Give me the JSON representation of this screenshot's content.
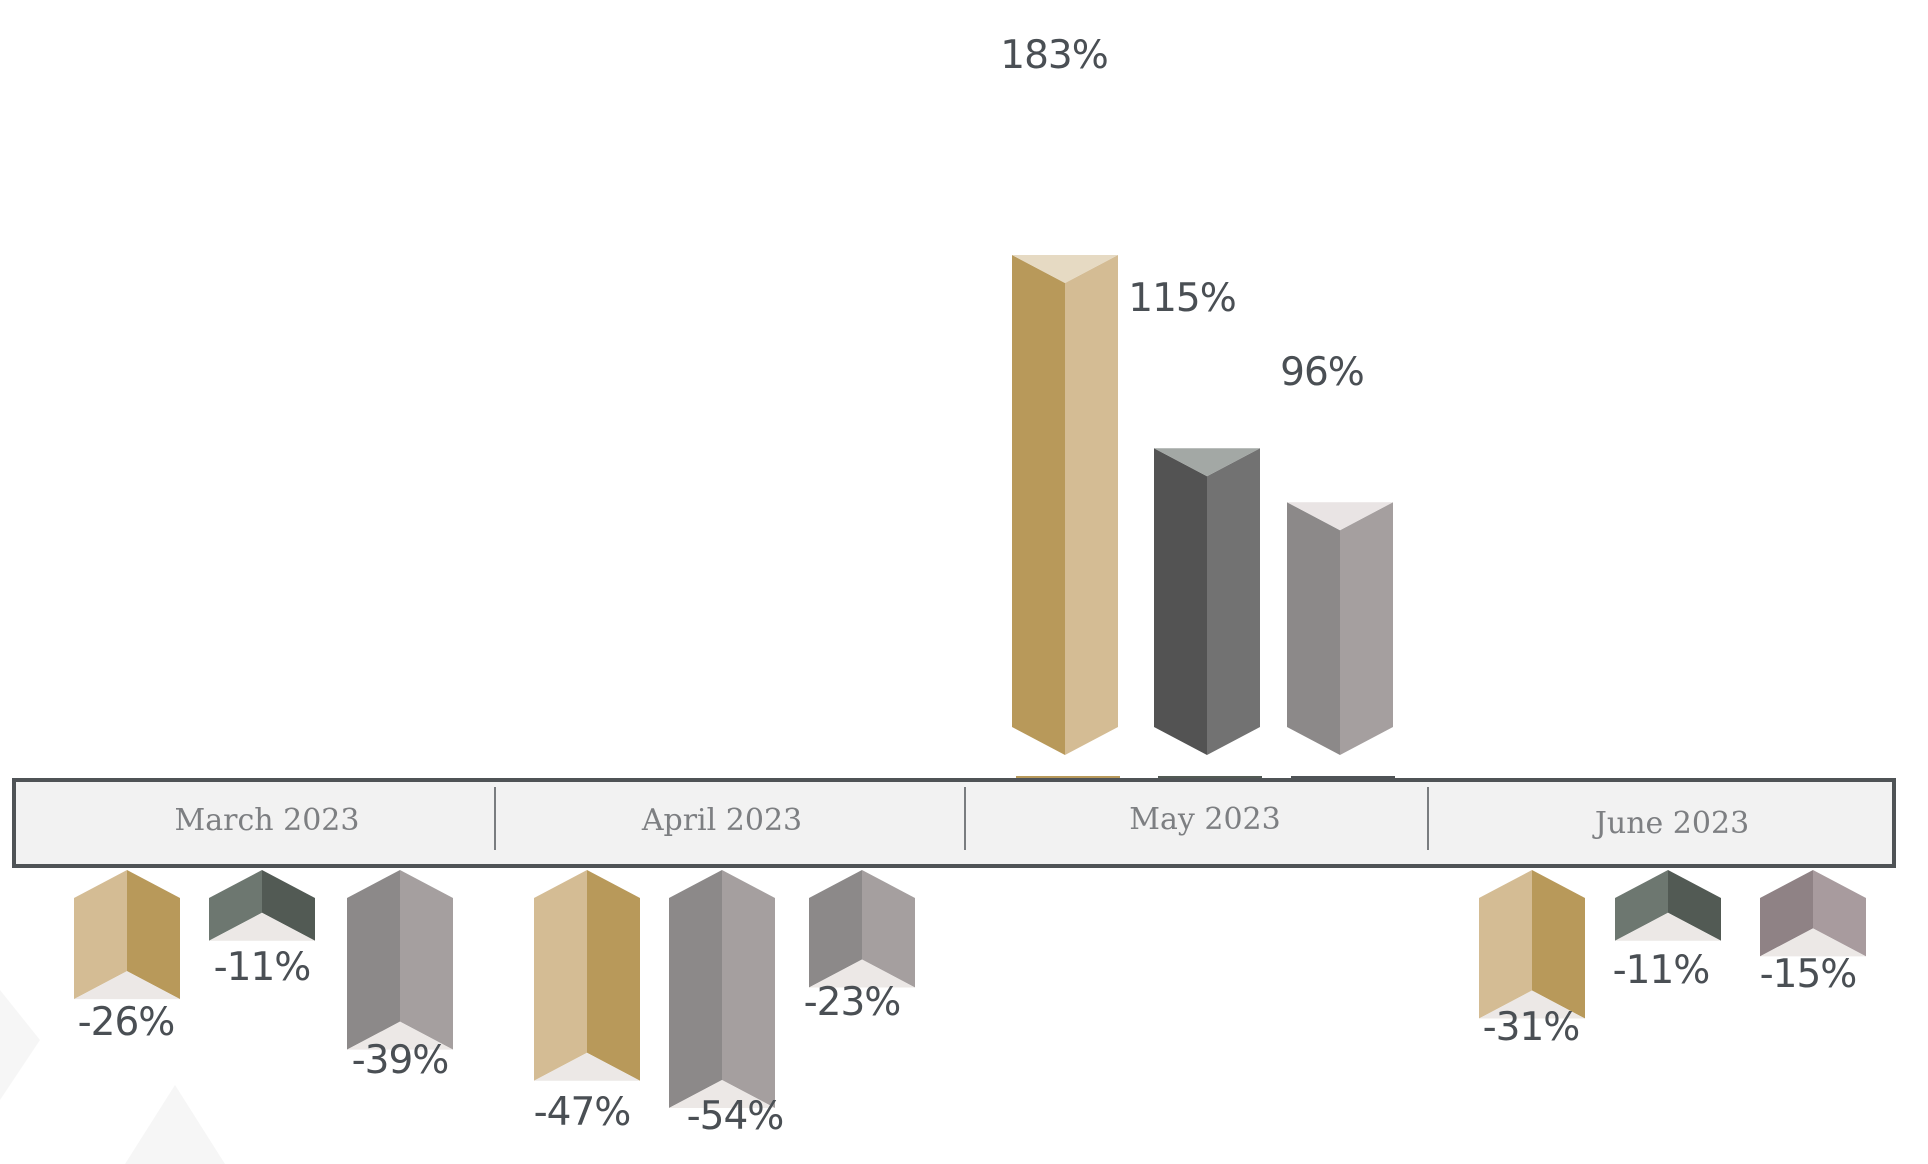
{
  "chart_data": {
    "type": "bar",
    "categories": [
      "March 2023",
      "April 2023",
      "May 2023",
      "June 2023"
    ],
    "series": [
      {
        "values": [
          -26,
          -47,
          183,
          -31
        ],
        "labels": [
          "-26%",
          "-47%",
          "183%",
          "-31%"
        ]
      },
      {
        "values": [
          -11,
          -54,
          115,
          -11
        ],
        "labels": [
          "-11%",
          "-54%",
          "115%",
          "-11%"
        ]
      },
      {
        "values": [
          -39,
          -23,
          96,
          -15
        ],
        "labels": [
          "-39%",
          "-23%",
          "96%",
          "-15%"
        ]
      }
    ],
    "unit": "%",
    "colors": {
      "gold_dark": "#b8995a",
      "gold_light": "#d4bc94",
      "charcoal_dark": "#535353",
      "charcoal_light": "#727272",
      "green_dark": "#525a54",
      "green_light": "#6d7770",
      "gray_dark": "#8c8989",
      "gray_light": "#a59f9f",
      "mauve_dark": "#8f8285",
      "mauve_light": "#a89b9e",
      "axis_band": "#f2f2f2",
      "axis_border": "#4f5356",
      "label_text": "#4a4f54",
      "category_text": "#7d7f82"
    }
  }
}
